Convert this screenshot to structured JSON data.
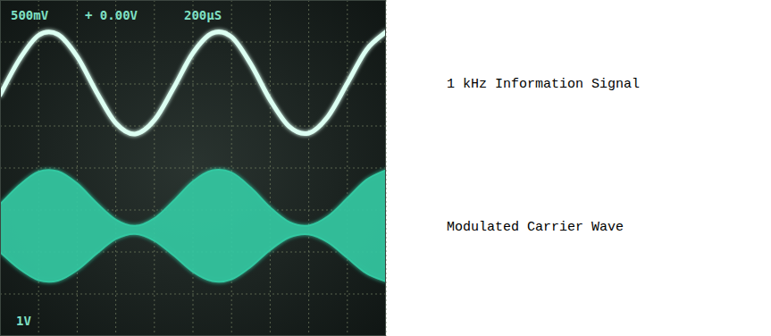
{
  "chart_data": {
    "type": "line",
    "annotations": [
      "500mV",
      "+ 0.00V",
      "200µS",
      "1V"
    ],
    "x": [
      0,
      0.5,
      1,
      1.5,
      2,
      2.5,
      3,
      3.5,
      4,
      4.5,
      5,
      5.5,
      6,
      6.5,
      7,
      7.5,
      8,
      8.5,
      9,
      9.5,
      10
    ],
    "xlim": [
      0,
      10
    ],
    "ylim": [
      -4,
      4
    ],
    "xticks": [
      0,
      1,
      2,
      3,
      4,
      5,
      6,
      7,
      8,
      9,
      10
    ],
    "yticks": [
      -4,
      -3,
      -2,
      -1,
      0,
      1,
      2,
      3,
      4
    ],
    "grid": true,
    "tick_labels": false,
    "series": [
      {
        "name": "1 kHz Information Signal",
        "type": "line",
        "color": "#dcfff2",
        "values": [
          1.74,
          2.58,
          3.16,
          3.18,
          2.65,
          1.81,
          1.07,
          0.81,
          1.14,
          1.91,
          2.74,
          3.21,
          3.12,
          2.47,
          1.62,
          0.98,
          0.83,
          1.23,
          2.02,
          2.82,
          3.24
        ]
      },
      {
        "name": "Modulated Carrier Wave",
        "type": "area",
        "color": "#33c9a2",
        "values": [
          -0.87,
          -0.41,
          -0.09,
          -0.08,
          -0.37,
          -0.83,
          -1.23,
          -1.38,
          -1.2,
          -0.78,
          -0.32,
          -0.06,
          -0.11,
          -0.47,
          -0.94,
          -1.29,
          -1.37,
          -1.15,
          -0.72,
          -0.28,
          -0.05
        ],
        "lower": [
          -2.0,
          -2.4,
          -2.67,
          -2.68,
          -2.43,
          -2.04,
          -1.69,
          -1.57,
          -1.73,
          -2.08,
          -2.47,
          -2.69,
          -2.65,
          -2.35,
          -1.95,
          -1.65,
          -1.58,
          -1.77,
          -2.14,
          -2.51,
          -2.7
        ]
      }
    ]
  }
}
